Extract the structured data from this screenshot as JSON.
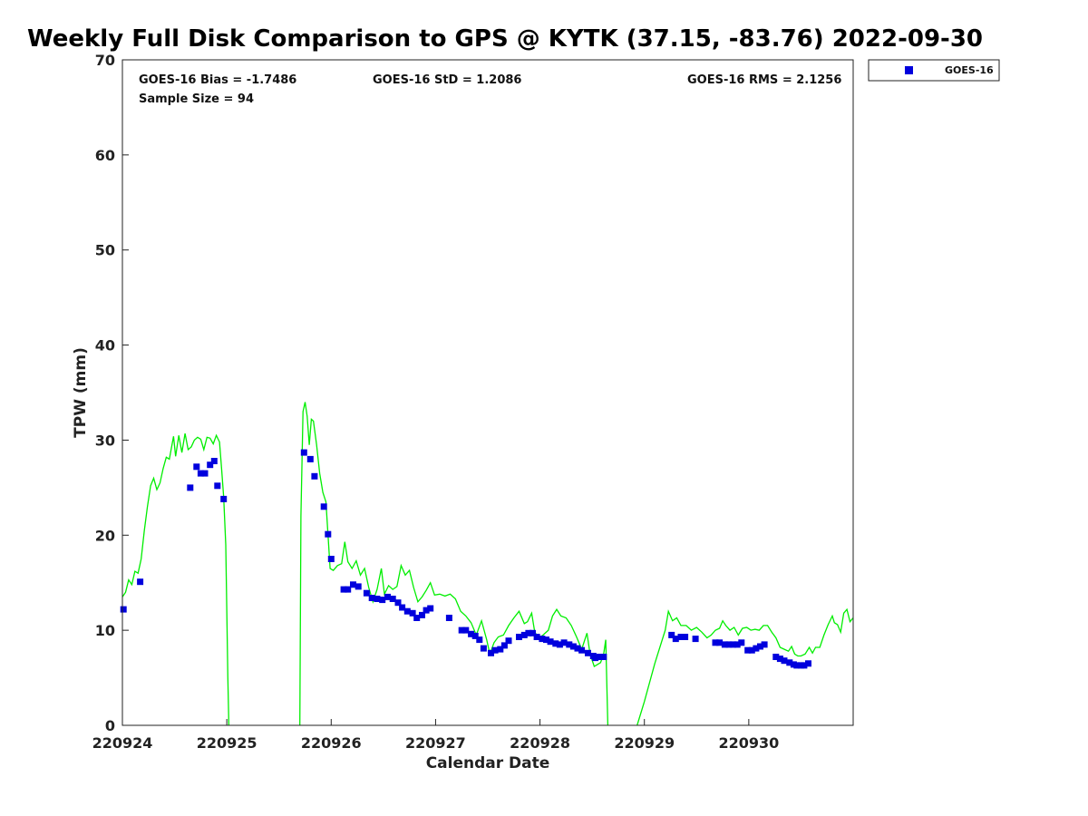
{
  "chart_data": {
    "type": "scatter",
    "title": "Weekly Full Disk Comparison to GPS @ KYTK (37.15, -83.76) 2022-09-30",
    "xlabel": "Calendar Date",
    "ylabel": "TPW (mm)",
    "xlim": [
      0,
      7
    ],
    "ylim": [
      0,
      70
    ],
    "x_unit": "days since 220924",
    "x_ticks": [
      {
        "value": 0,
        "label": "220924"
      },
      {
        "value": 1,
        "label": "220925"
      },
      {
        "value": 2,
        "label": "220926"
      },
      {
        "value": 3,
        "label": "220927"
      },
      {
        "value": 4,
        "label": "220928"
      },
      {
        "value": 5,
        "label": "220929"
      },
      {
        "value": 6,
        "label": "220930"
      }
    ],
    "y_ticks": [
      0,
      10,
      20,
      30,
      40,
      50,
      60,
      70
    ],
    "stats": {
      "bias": "GOES-16 Bias = -1.7486",
      "std": "GOES-16 StD = 1.2086",
      "rms": "GOES-16 RMS = 2.1256",
      "sample": "Sample Size = 94"
    },
    "legend": {
      "position": "top-right (outside plot)",
      "label": "GOES-16"
    },
    "colors": {
      "goes": "#0000dd",
      "gps": "#00ee00"
    },
    "series": [
      {
        "name": "GOES-16",
        "kind": "scatter",
        "points": [
          [
            0.01,
            12.2
          ],
          [
            0.17,
            15.1
          ],
          [
            0.65,
            25.0
          ],
          [
            0.71,
            27.2
          ],
          [
            0.75,
            26.5
          ],
          [
            0.79,
            26.5
          ],
          [
            0.84,
            27.4
          ],
          [
            0.88,
            27.8
          ],
          [
            0.91,
            25.2
          ],
          [
            0.97,
            23.8
          ],
          [
            1.74,
            28.7
          ],
          [
            1.8,
            28.0
          ],
          [
            1.84,
            26.2
          ],
          [
            1.93,
            23.0
          ],
          [
            1.97,
            20.1
          ],
          [
            2.0,
            17.5
          ],
          [
            2.12,
            14.3
          ],
          [
            2.16,
            14.3
          ],
          [
            2.21,
            14.8
          ],
          [
            2.26,
            14.6
          ],
          [
            2.34,
            13.9
          ],
          [
            2.39,
            13.4
          ],
          [
            2.44,
            13.3
          ],
          [
            2.49,
            13.2
          ],
          [
            2.54,
            13.5
          ],
          [
            2.59,
            13.3
          ],
          [
            2.64,
            12.9
          ],
          [
            2.68,
            12.4
          ],
          [
            2.73,
            12.0
          ],
          [
            2.78,
            11.8
          ],
          [
            2.82,
            11.3
          ],
          [
            2.87,
            11.6
          ],
          [
            2.91,
            12.1
          ],
          [
            2.95,
            12.3
          ],
          [
            3.13,
            11.3
          ],
          [
            3.25,
            10.0
          ],
          [
            3.29,
            10.0
          ],
          [
            3.34,
            9.6
          ],
          [
            3.38,
            9.4
          ],
          [
            3.42,
            9.0
          ],
          [
            3.46,
            8.1
          ],
          [
            3.53,
            7.6
          ],
          [
            3.57,
            7.9
          ],
          [
            3.62,
            8.0
          ],
          [
            3.66,
            8.4
          ],
          [
            3.7,
            8.9
          ],
          [
            3.8,
            9.3
          ],
          [
            3.85,
            9.5
          ],
          [
            3.89,
            9.7
          ],
          [
            3.93,
            9.7
          ],
          [
            3.97,
            9.3
          ],
          [
            4.02,
            9.1
          ],
          [
            4.06,
            9.0
          ],
          [
            4.1,
            8.8
          ],
          [
            4.15,
            8.6
          ],
          [
            4.19,
            8.5
          ],
          [
            4.23,
            8.7
          ],
          [
            4.28,
            8.5
          ],
          [
            4.32,
            8.3
          ],
          [
            4.36,
            8.1
          ],
          [
            4.4,
            7.9
          ],
          [
            4.46,
            7.6
          ],
          [
            4.51,
            7.3
          ],
          [
            4.53,
            7.1
          ],
          [
            4.57,
            7.2
          ],
          [
            4.61,
            7.2
          ],
          [
            5.26,
            9.5
          ],
          [
            5.3,
            9.1
          ],
          [
            5.35,
            9.3
          ],
          [
            5.39,
            9.3
          ],
          [
            5.49,
            9.1
          ],
          [
            5.68,
            8.7
          ],
          [
            5.72,
            8.7
          ],
          [
            5.77,
            8.5
          ],
          [
            5.81,
            8.5
          ],
          [
            5.85,
            8.5
          ],
          [
            5.89,
            8.5
          ],
          [
            5.93,
            8.7
          ],
          [
            5.99,
            7.9
          ],
          [
            6.03,
            7.9
          ],
          [
            6.07,
            8.1
          ],
          [
            6.11,
            8.3
          ],
          [
            6.15,
            8.5
          ],
          [
            6.26,
            7.2
          ],
          [
            6.3,
            7.0
          ],
          [
            6.34,
            6.8
          ],
          [
            6.39,
            6.6
          ],
          [
            6.43,
            6.4
          ],
          [
            6.46,
            6.3
          ],
          [
            6.5,
            6.3
          ],
          [
            6.53,
            6.3
          ],
          [
            6.57,
            6.5
          ]
        ]
      },
      {
        "name": "",
        "kind": "line",
        "segments": [
          [
            [
              0.0,
              13.5
            ],
            [
              0.03,
              14.0
            ],
            [
              0.06,
              15.3
            ],
            [
              0.09,
              14.8
            ],
            [
              0.12,
              16.2
            ],
            [
              0.15,
              16.0
            ],
            [
              0.18,
              17.5
            ],
            [
              0.21,
              20.5
            ],
            [
              0.24,
              23.0
            ],
            [
              0.27,
              25.2
            ],
            [
              0.3,
              26.0
            ],
            [
              0.33,
              24.8
            ],
            [
              0.36,
              25.5
            ],
            [
              0.39,
              27.0
            ],
            [
              0.42,
              28.2
            ],
            [
              0.45,
              28.0
            ],
            [
              0.49,
              30.4
            ],
            [
              0.51,
              28.3
            ],
            [
              0.54,
              30.5
            ],
            [
              0.57,
              28.7
            ],
            [
              0.6,
              30.7
            ],
            [
              0.63,
              29.0
            ],
            [
              0.66,
              29.3
            ],
            [
              0.69,
              30.0
            ],
            [
              0.72,
              30.3
            ],
            [
              0.75,
              30.1
            ],
            [
              0.78,
              29.0
            ],
            [
              0.81,
              30.3
            ],
            [
              0.84,
              30.2
            ],
            [
              0.87,
              29.6
            ],
            [
              0.9,
              30.5
            ],
            [
              0.93,
              29.8
            ],
            [
              0.95,
              27.0
            ],
            [
              0.97,
              24.0
            ],
            [
              0.99,
              19.0
            ],
            [
              1.01,
              5.0
            ],
            [
              1.02,
              0.0
            ]
          ],
          [
            [
              1.7,
              0.0
            ],
            [
              1.71,
              22.0
            ],
            [
              1.73,
              33.0
            ],
            [
              1.75,
              34.0
            ],
            [
              1.77,
              32.5
            ],
            [
              1.79,
              29.5
            ],
            [
              1.81,
              32.2
            ],
            [
              1.83,
              32.0
            ],
            [
              1.86,
              29.5
            ],
            [
              1.89,
              26.5
            ],
            [
              1.92,
              24.5
            ],
            [
              1.95,
              23.5
            ],
            [
              1.97,
              20.0
            ],
            [
              1.99,
              16.5
            ],
            [
              2.02,
              16.3
            ],
            [
              2.06,
              16.8
            ],
            [
              2.1,
              17.0
            ],
            [
              2.13,
              19.3
            ],
            [
              2.16,
              17.2
            ],
            [
              2.2,
              16.5
            ],
            [
              2.24,
              17.3
            ],
            [
              2.28,
              15.8
            ],
            [
              2.32,
              16.5
            ],
            [
              2.36,
              14.5
            ],
            [
              2.4,
              13.0
            ],
            [
              2.44,
              14.3
            ],
            [
              2.48,
              16.5
            ],
            [
              2.51,
              13.8
            ],
            [
              2.55,
              14.7
            ],
            [
              2.59,
              14.3
            ],
            [
              2.63,
              14.6
            ],
            [
              2.67,
              16.8
            ],
            [
              2.71,
              15.8
            ],
            [
              2.75,
              16.3
            ],
            [
              2.79,
              14.5
            ],
            [
              2.83,
              13.0
            ],
            [
              2.87,
              13.5
            ],
            [
              2.91,
              14.2
            ],
            [
              2.95,
              15.0
            ],
            [
              2.99,
              13.7
            ],
            [
              3.04,
              13.8
            ],
            [
              3.09,
              13.6
            ],
            [
              3.14,
              13.8
            ],
            [
              3.19,
              13.3
            ],
            [
              3.24,
              12.0
            ],
            [
              3.29,
              11.5
            ],
            [
              3.34,
              10.8
            ],
            [
              3.39,
              9.5
            ],
            [
              3.44,
              11.0
            ],
            [
              3.49,
              9.0
            ],
            [
              3.52,
              7.5
            ],
            [
              3.56,
              8.7
            ],
            [
              3.6,
              9.3
            ],
            [
              3.65,
              9.5
            ],
            [
              3.7,
              10.5
            ],
            [
              3.75,
              11.3
            ],
            [
              3.8,
              12.0
            ],
            [
              3.85,
              10.7
            ],
            [
              3.88,
              10.9
            ],
            [
              3.92,
              11.8
            ],
            [
              3.95,
              9.8
            ],
            [
              3.99,
              9.2
            ],
            [
              4.03,
              9.5
            ],
            [
              4.08,
              10.0
            ],
            [
              4.12,
              11.5
            ],
            [
              4.16,
              12.2
            ],
            [
              4.2,
              11.5
            ],
            [
              4.25,
              11.3
            ],
            [
              4.3,
              10.5
            ],
            [
              4.35,
              9.3
            ],
            [
              4.4,
              8.0
            ],
            [
              4.45,
              9.7
            ],
            [
              4.48,
              7.5
            ],
            [
              4.52,
              6.2
            ],
            [
              4.55,
              6.4
            ],
            [
              4.58,
              6.6
            ],
            [
              4.61,
              7.5
            ],
            [
              4.63,
              9.0
            ],
            [
              4.65,
              0.0
            ]
          ],
          [
            [
              4.93,
              0.0
            ],
            [
              5.0,
              2.5
            ],
            [
              5.1,
              6.5
            ],
            [
              5.2,
              10.0
            ],
            [
              5.23,
              12.0
            ],
            [
              5.27,
              11.0
            ],
            [
              5.31,
              11.3
            ],
            [
              5.35,
              10.5
            ],
            [
              5.4,
              10.5
            ],
            [
              5.45,
              10.0
            ],
            [
              5.5,
              10.3
            ],
            [
              5.55,
              9.8
            ],
            [
              5.6,
              9.2
            ],
            [
              5.64,
              9.5
            ],
            [
              5.68,
              10.0
            ],
            [
              5.72,
              10.2
            ],
            [
              5.75,
              11.0
            ],
            [
              5.78,
              10.5
            ],
            [
              5.82,
              10.0
            ],
            [
              5.86,
              10.3
            ],
            [
              5.9,
              9.5
            ],
            [
              5.94,
              10.2
            ],
            [
              5.98,
              10.3
            ],
            [
              6.02,
              10.0
            ],
            [
              6.06,
              10.1
            ],
            [
              6.1,
              10.0
            ],
            [
              6.14,
              10.5
            ],
            [
              6.18,
              10.5
            ],
            [
              6.22,
              9.8
            ],
            [
              6.26,
              9.2
            ],
            [
              6.3,
              8.2
            ],
            [
              6.34,
              8.0
            ],
            [
              6.38,
              7.8
            ],
            [
              6.41,
              8.3
            ],
            [
              6.44,
              7.5
            ],
            [
              6.47,
              7.3
            ],
            [
              6.5,
              7.3
            ],
            [
              6.54,
              7.5
            ],
            [
              6.58,
              8.2
            ],
            [
              6.61,
              7.6
            ],
            [
              6.64,
              8.2
            ],
            [
              6.68,
              8.2
            ],
            [
              6.72,
              9.5
            ],
            [
              6.76,
              10.6
            ],
            [
              6.8,
              11.5
            ],
            [
              6.82,
              10.8
            ],
            [
              6.85,
              10.6
            ],
            [
              6.88,
              9.8
            ],
            [
              6.91,
              11.8
            ],
            [
              6.94,
              12.2
            ],
            [
              6.97,
              10.9
            ],
            [
              7.0,
              11.3
            ]
          ]
        ]
      }
    ]
  }
}
